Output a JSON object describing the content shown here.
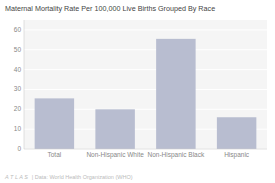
{
  "chart_data": {
    "type": "bar",
    "title": "Maternal Mortality Rate Per 100,000 Live Births Grouped By Race",
    "categories": [
      "Total",
      "Non-Hispanic White",
      "Non-Hispanic Black",
      "Hispanic"
    ],
    "values": [
      25.5,
      20.0,
      55.5,
      16.0
    ],
    "color": "#b8bdd0",
    "ylim": [
      0,
      65
    ],
    "yticks": [
      0,
      10,
      20,
      30,
      40,
      50,
      60
    ],
    "grid": true,
    "annotations": [
      "A T L A S",
      "| Data: World Health Organization (WHO)"
    ]
  }
}
